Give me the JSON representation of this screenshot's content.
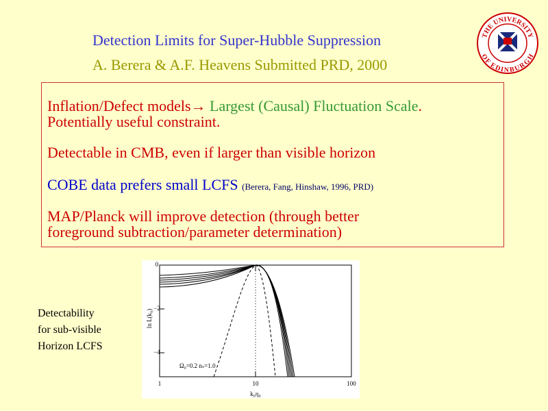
{
  "header": {
    "title": "Detection Limits for Super-Hubble Suppression",
    "subtitle": "A. Berera & A.F. Heavens Submitted PRD, 2000"
  },
  "logo": {
    "top": "THE UNIVERSITY",
    "bottom": "OF EDINBURGH"
  },
  "box": {
    "items": [
      {
        "parts": [
          "Inflation/Defect models",
          "→",
          " Largest (Causal) Fluctuation Scale",
          "."
        ]
      },
      {
        "parts": [
          "Potentially useful constraint."
        ]
      },
      {
        "parts": [
          "Detectable in CMB, even if larger than visible horizon"
        ]
      },
      {
        "parts": [
          "COBE data prefers small LCFS ",
          "(Berera, Fang, Hinshaw, 1996, PRD)"
        ]
      },
      {
        "parts": [
          "MAP/Planck will improve detection (through better"
        ]
      },
      {
        "parts": [
          "foreground subtraction/parameter determination)"
        ]
      }
    ]
  },
  "figure": {
    "y_label": "ln L(k₀)",
    "x_label": "k₀η₀",
    "annotation": "Ω₀=0.2  nₛ=1.0",
    "yticks": [
      "0",
      "−2",
      "−4"
    ],
    "xticks": [
      "1",
      "10",
      "100"
    ]
  },
  "caption": [
    "Detectability",
    "for sub-visible",
    "Horizon LCFS"
  ]
}
